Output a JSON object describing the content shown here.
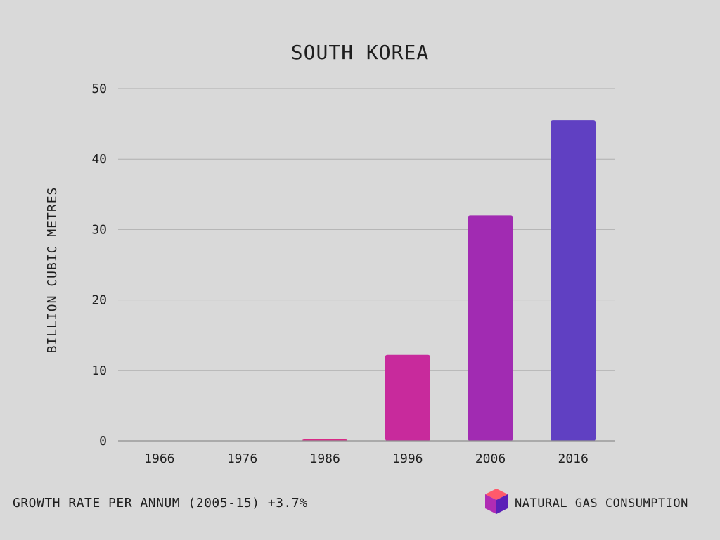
{
  "chart_data": {
    "type": "bar",
    "title": "SOUTH KOREA",
    "xlabel": "",
    "ylabel": "BILLION CUBIC METRES",
    "categories": [
      "1966",
      "1976",
      "1986",
      "1996",
      "2006",
      "2016"
    ],
    "values": [
      0,
      0,
      0.2,
      12.2,
      32.0,
      45.5
    ],
    "ylim": [
      0,
      50
    ],
    "yticks": [
      0,
      10,
      20,
      30,
      40,
      50
    ],
    "grid": true,
    "bar_colors": [
      "#e2266d",
      "#e2266d",
      "#d82a86",
      "#c82a9c",
      "#a12bb2",
      "#6040c2"
    ],
    "legend": {
      "label": "NATURAL GAS CONSUMPTION",
      "placement": "bottom-right"
    }
  },
  "footer": {
    "growth_text": "GROWTH RATE PER ANNUM (2005-15) +3.7%"
  },
  "colors": {
    "background": "#d9d9d9",
    "grid": "#b0b0b0",
    "axis": "#8f8f8f",
    "text": "#1f1f1f",
    "legend_top": "#ff5a6b",
    "legend_left": "#b02cb4",
    "legend_right": "#5b20b8"
  },
  "icons": {
    "legend": "cube-icon"
  }
}
